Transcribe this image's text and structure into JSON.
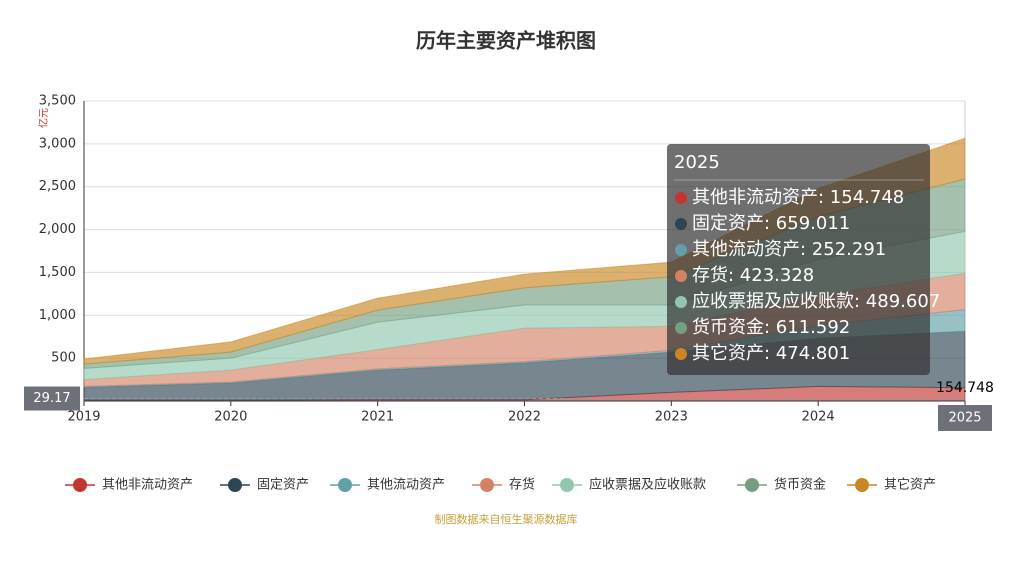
{
  "chart_data": {
    "type": "stacked_area",
    "title": "历年主要资产堆积图",
    "y_unit": "亿元",
    "source": "制图数据来自恒生聚源数据库",
    "categories": [
      "2019",
      "2020",
      "2021",
      "2022",
      "2023",
      "2024",
      "2025"
    ],
    "ylim": [
      0,
      3500
    ],
    "yticks": [
      0,
      500,
      {
        "value": 1000,
        "label": "1,000"
      },
      {
        "value": 1500,
        "label": "1,500"
      },
      {
        "value": 2000,
        "label": "2,000"
      },
      {
        "value": 2500,
        "label": "2,500"
      },
      {
        "value": 3000,
        "label": "3,000"
      },
      {
        "value": 3500,
        "label": "3,500"
      }
    ],
    "grid": true,
    "legend": "bottom",
    "series": [
      {
        "name": "其他非流动资产",
        "color": "#c23531",
        "values": [
          10,
          10,
          15,
          15,
          100,
          170,
          154.748
        ]
      },
      {
        "name": "固定资产",
        "color": "#2f4554",
        "values": [
          150,
          200,
          345,
          430,
          470,
          560,
          659.011
        ]
      },
      {
        "name": "其他流动资产",
        "color": "#61a0a8",
        "values": [
          10,
          10,
          15,
          15,
          20,
          150,
          252.291
        ]
      },
      {
        "name": "存货",
        "color": "#d48265",
        "values": [
          80,
          140,
          225,
          390,
          280,
          350,
          423.328
        ]
      },
      {
        "name": "应收票据及应收账款",
        "color": "#91c7ae",
        "values": [
          130,
          140,
          320,
          270,
          250,
          420,
          489.607
        ]
      },
      {
        "name": "货币资金",
        "color": "#749f83",
        "values": [
          50,
          70,
          140,
          200,
          330,
          500,
          611.592
        ]
      },
      {
        "name": "其它资产",
        "color": "#ca8622",
        "values": [
          60,
          120,
          140,
          160,
          170,
          330,
          474.801
        ]
      }
    ],
    "tooltip": {
      "category_index": 6
    },
    "pointer_value": 29.17
  }
}
